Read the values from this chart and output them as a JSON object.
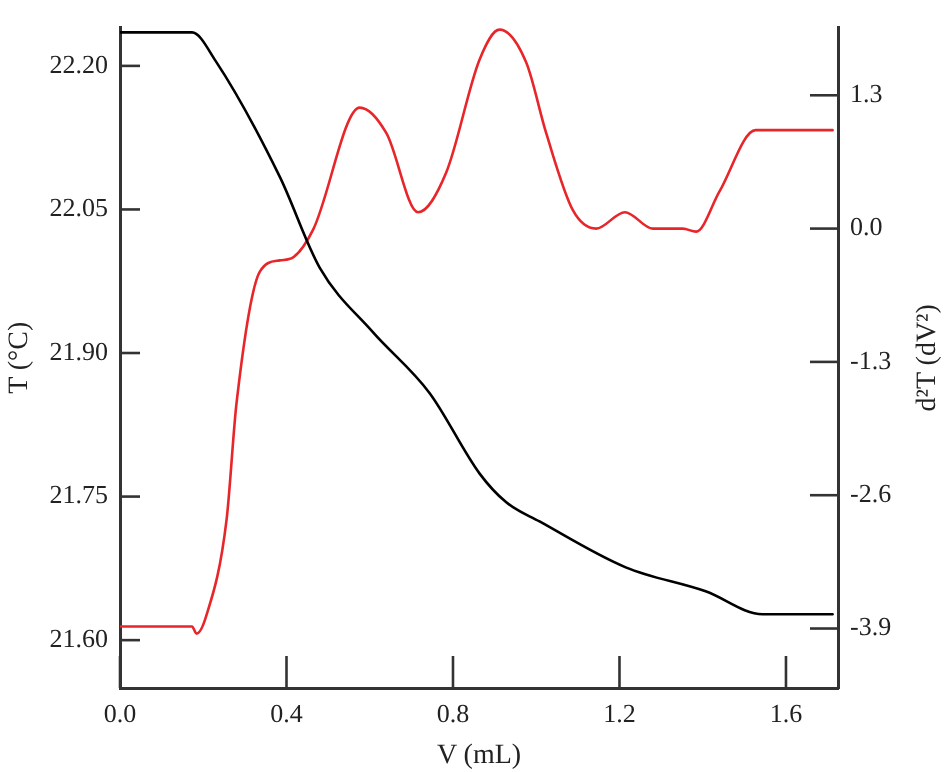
{
  "chart_data": {
    "type": "line",
    "xlabel": "V (mL)",
    "ylabel": "T (°C)",
    "y2label": "d²T (dV²)",
    "xlim": [
      0,
      1.725
    ],
    "xticks": [
      {
        "value": 0,
        "label": "0.0"
      },
      0.4,
      0.8,
      1.2,
      1.6
    ],
    "ylim": [
      21.55,
      22.24
    ],
    "yticks": [
      {
        "value": 21.6,
        "label": "21.60"
      },
      21.75,
      {
        "value": 21.9,
        "label": "21.90"
      },
      22.05,
      {
        "value": 22.2,
        "label": "22.20"
      }
    ],
    "y2lim": [
      -4.48,
      1.96
    ],
    "y2ticks": [
      -3.9,
      -2.6,
      -1.3,
      {
        "value": 0,
        "label": "0.0"
      },
      1.3
    ],
    "grid": false,
    "legend": false,
    "marker": "none",
    "line_style": "solid",
    "series": [
      {
        "color": "#000000",
        "x": [
          0,
          0.173,
          0.23,
          0.384,
          0.48,
          0.607,
          0.744,
          0.864,
          0.928,
          1.008,
          1.215,
          1.407,
          1.544,
          1.712
        ],
        "values": [
          22.235,
          22.235,
          22.205,
          22.084,
          21.989,
          21.922,
          21.858,
          21.774,
          21.744,
          21.724,
          21.676,
          21.651,
          21.627,
          21.627
        ]
      },
      {
        "color": "#e8262a",
        "axis": "y2",
        "x": [
          0,
          0.173,
          0.184,
          0.207,
          0.256,
          0.28,
          0.336,
          0.384,
          0.416,
          0.464,
          0.576,
          0.64,
          0.716,
          0.784,
          0.864,
          0.912,
          0.976,
          1.024,
          1.088,
          1.144,
          1.213,
          1.28,
          1.352,
          1.384,
          1.44,
          1.527,
          1.712
        ],
        "values": [
          -3.88,
          -3.88,
          -3.95,
          -3.78,
          -2.84,
          -1.7,
          -0.42,
          -0.31,
          -0.28,
          -0.01,
          1.18,
          0.93,
          0.16,
          0.55,
          1.65,
          1.94,
          1.62,
          0.93,
          0.18,
          0.0,
          0.16,
          0.0,
          0.0,
          -0.03,
          0.36,
          0.96,
          0.96
        ]
      }
    ]
  }
}
